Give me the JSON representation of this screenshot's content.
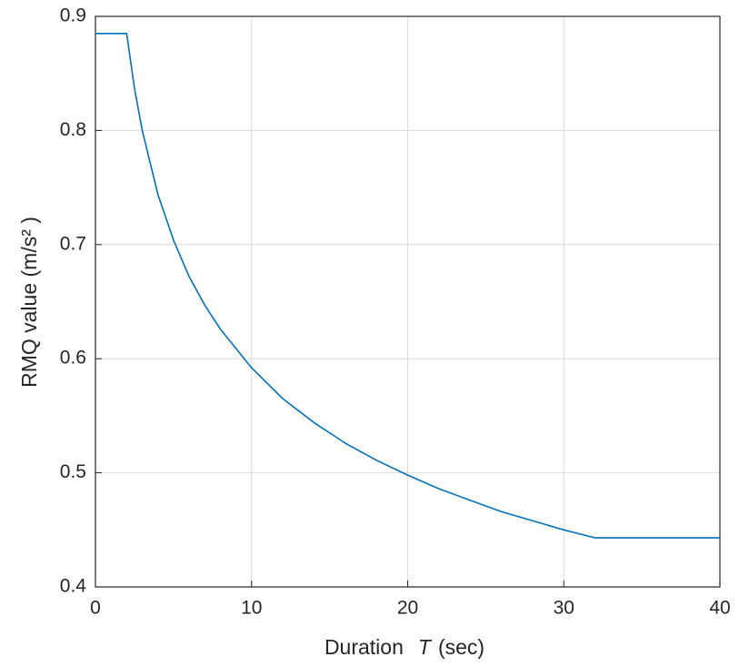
{
  "chart_data": {
    "type": "line",
    "x_label": {
      "text": "Duration",
      "symbol": "T",
      "unit": "(sec)"
    },
    "y_label": "RMQ value (m/s² )",
    "x": [
      0,
      2,
      2.5,
      3,
      4,
      5,
      6,
      7,
      8,
      10,
      12,
      14,
      16,
      18,
      20,
      22,
      24,
      26,
      28,
      30,
      32,
      40
    ],
    "series": [
      {
        "color": "#0072bd",
        "values": [
          0.885,
          0.885,
          0.837,
          0.8,
          0.744,
          0.704,
          0.672,
          0.647,
          0.626,
          0.592,
          0.565,
          0.544,
          0.526,
          0.511,
          0.498,
          0.486,
          0.476,
          0.466,
          0.458,
          0.45,
          0.443,
          0.443
        ]
      }
    ],
    "xlim": [
      0,
      40
    ],
    "xticks": [
      0,
      10,
      20,
      30,
      40
    ],
    "ylim": [
      0.4,
      0.9
    ],
    "yticks": [
      0.4,
      0.5,
      0.6,
      0.7,
      0.8,
      0.9
    ],
    "grid": true
  }
}
